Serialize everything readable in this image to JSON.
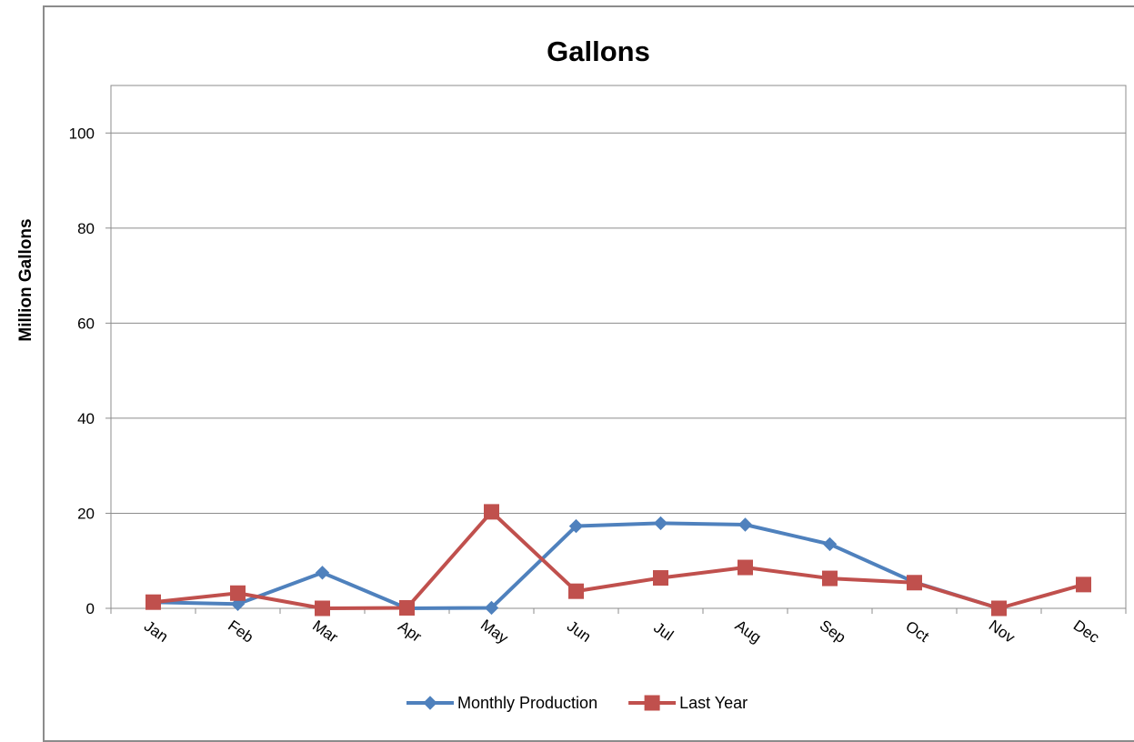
{
  "chart_data": {
    "type": "line",
    "title": "Gallons",
    "xlabel": "",
    "ylabel": "Million Gallons",
    "categories": [
      "Jan",
      "Feb",
      "Mar",
      "Apr",
      "May",
      "Jun",
      "Jul",
      "Aug",
      "Sep",
      "Oct",
      "Nov",
      "Dec"
    ],
    "ylim": [
      0,
      110
    ],
    "yticks": [
      0,
      20,
      40,
      60,
      80,
      100
    ],
    "grid": true,
    "legend_position": "bottom",
    "series": [
      {
        "name": "Monthly Production",
        "color": "#4f81bd",
        "marker": "diamond",
        "values": [
          1.3,
          0.9,
          7.5,
          0.0,
          0.1,
          17.3,
          17.9,
          17.6,
          13.5,
          5.5,
          0.0,
          null
        ]
      },
      {
        "name": "Last Year",
        "color": "#c0504d",
        "marker": "square",
        "values": [
          1.3,
          3.2,
          0.0,
          0.1,
          20.3,
          3.6,
          6.4,
          8.6,
          6.3,
          5.4,
          0.0,
          5.0
        ]
      }
    ]
  }
}
